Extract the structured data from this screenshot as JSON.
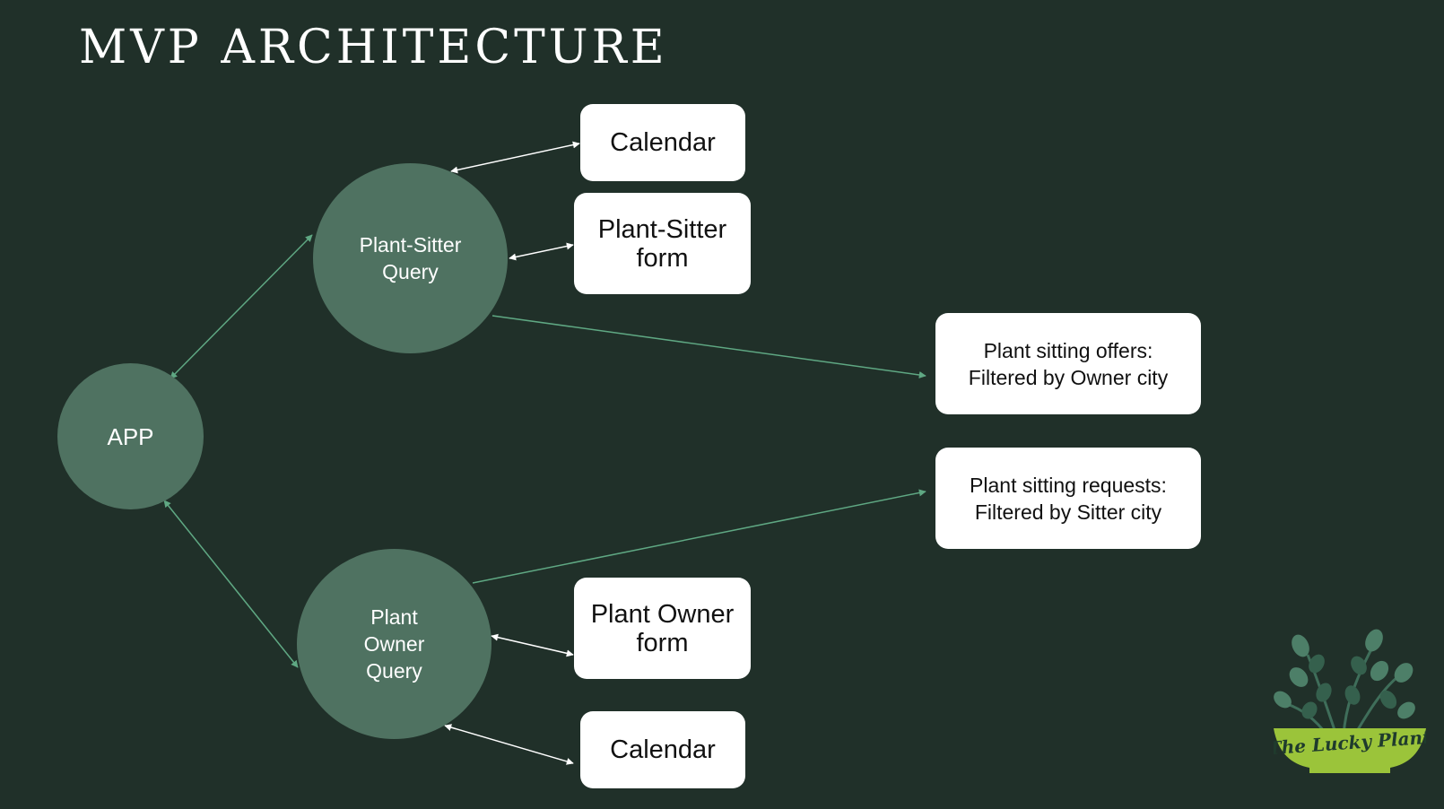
{
  "title": "MVP ARCHITECTURE",
  "nodes": {
    "app": "APP",
    "sitter_query": "Plant-Sitter\nQuery",
    "owner_query": "Plant\nOwner\nQuery",
    "calendar_top": "Calendar",
    "sitter_form": "Plant-Sitter\nform",
    "offers": "Plant sitting offers:\nFiltered by Owner city",
    "requests": "Plant sitting requests:\nFiltered by Sitter city",
    "owner_form": "Plant Owner\nform",
    "calendar_bottom": "Calendar"
  },
  "edges": [
    {
      "from": "app",
      "to": "sitter_query",
      "direction": "both",
      "color": "green"
    },
    {
      "from": "app",
      "to": "owner_query",
      "direction": "both",
      "color": "green"
    },
    {
      "from": "sitter_query",
      "to": "calendar_top",
      "direction": "both",
      "color": "white"
    },
    {
      "from": "sitter_query",
      "to": "sitter_form",
      "direction": "both",
      "color": "white"
    },
    {
      "from": "sitter_query",
      "to": "offers",
      "direction": "forward",
      "color": "green"
    },
    {
      "from": "owner_query",
      "to": "requests",
      "direction": "forward",
      "color": "green"
    },
    {
      "from": "owner_query",
      "to": "owner_form",
      "direction": "both",
      "color": "white"
    },
    {
      "from": "owner_query",
      "to": "calendar_bottom",
      "direction": "both",
      "color": "white"
    }
  ],
  "logo": {
    "text": "The Lucky Plant",
    "pot_color": "#9bc43a",
    "leaf_color": "#3f6e5a"
  },
  "colors": {
    "background": "#203029",
    "node_fill": "#4f7261",
    "green_connector": "#5fa883",
    "white_connector": "#ffffff"
  }
}
